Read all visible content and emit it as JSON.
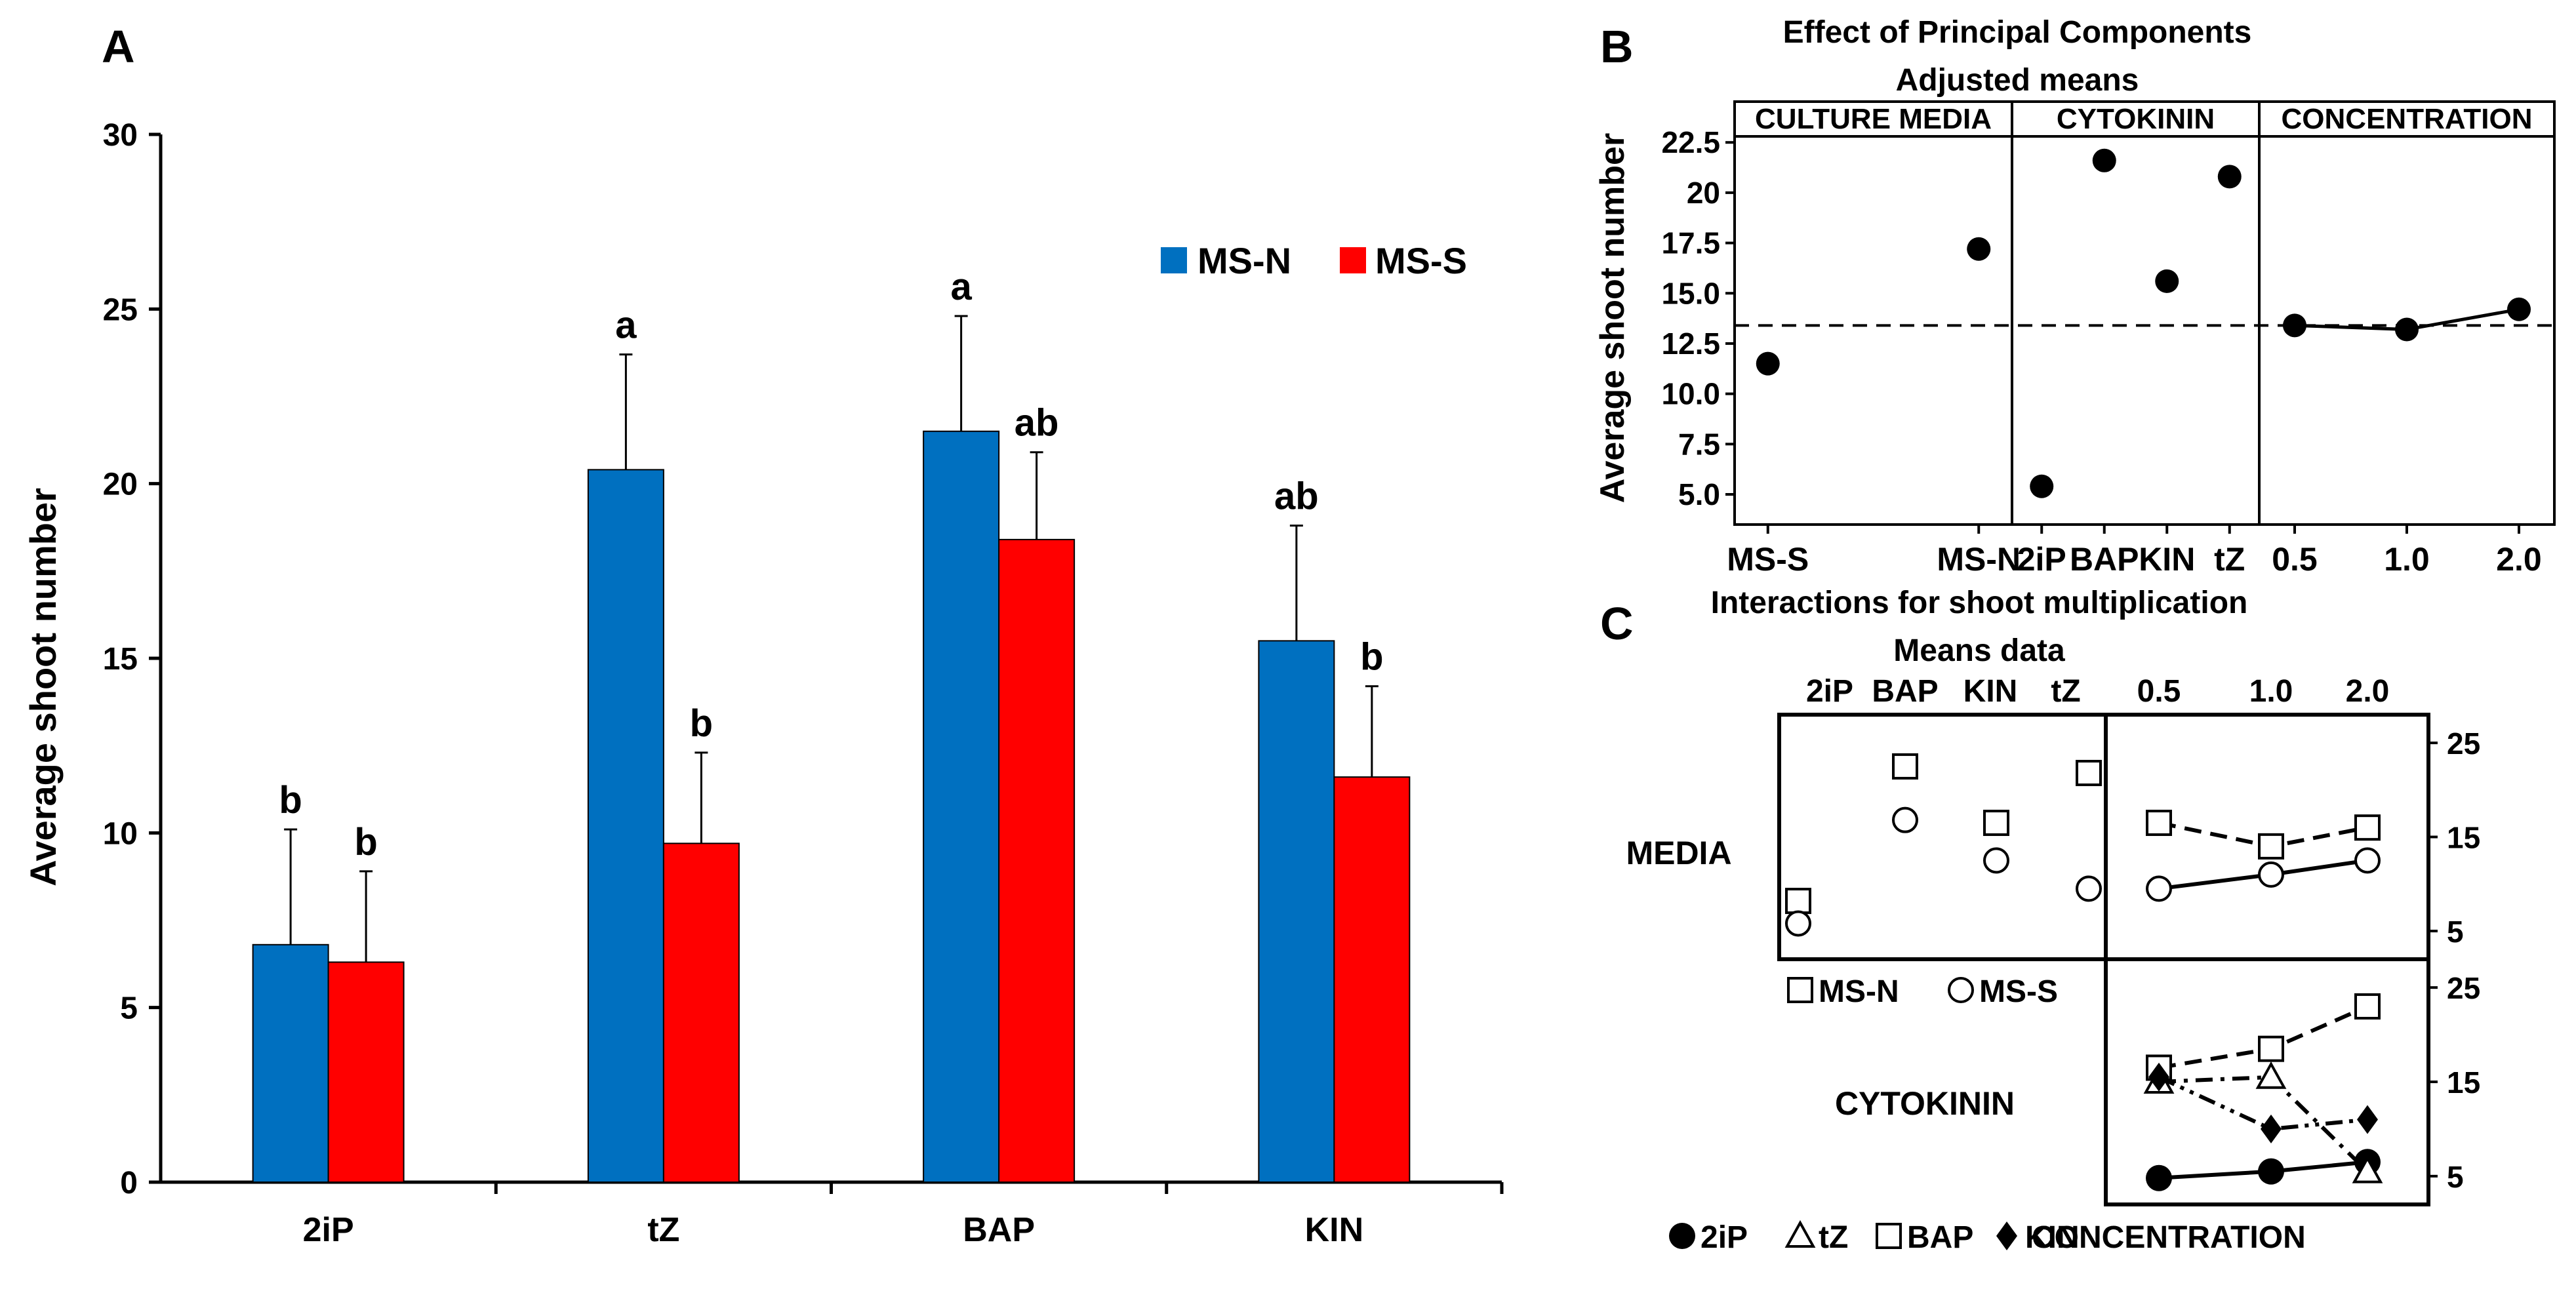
{
  "colors": {
    "ms_n": "#0070C0",
    "ms_s": "#FF0000",
    "ink": "#000000"
  },
  "panel_labels": {
    "a": "A",
    "b": "B",
    "c": "C"
  },
  "chart_data": [
    {
      "panel": "A",
      "type": "bar",
      "title": "",
      "xlabel": "",
      "ylabel": "Average shoot number",
      "ylim": [
        0,
        30
      ],
      "yticks": [
        "0",
        "5",
        "10",
        "15",
        "20",
        "25",
        "30"
      ],
      "categories": [
        "2iP",
        "tZ",
        "BAP",
        "KIN"
      ],
      "legend_position": "top-right",
      "series": [
        {
          "name": "MS-N",
          "color": "#0070C0",
          "values": [
            6.8,
            20.4,
            21.5,
            15.5
          ],
          "errors": [
            3.3,
            3.3,
            3.3,
            3.3
          ],
          "letters": [
            "b",
            "a",
            "a",
            "ab"
          ]
        },
        {
          "name": "MS-S",
          "color": "#FF0000",
          "values": [
            6.3,
            9.7,
            18.4,
            11.6
          ],
          "errors": [
            2.6,
            2.6,
            2.5,
            2.6
          ],
          "letters": [
            "b",
            "b",
            "ab",
            "b"
          ]
        }
      ]
    },
    {
      "panel": "B",
      "type": "scatter",
      "title": "Effect of Principal Components",
      "subtitle": "Adjusted means",
      "xlabel": "",
      "ylabel": "Average shoot number",
      "ylim": [
        3.5,
        22.8
      ],
      "yticks": [
        "5.0",
        "7.5",
        "10.0",
        "12.5",
        "15.0",
        "17.5",
        "20",
        "22.5"
      ],
      "reference_line": 13.4,
      "facets": [
        {
          "name": "CULTURE MEDIA",
          "categories": [
            "MS-S",
            "MS-N"
          ],
          "values": [
            11.5,
            17.2
          ],
          "connected": false
        },
        {
          "name": "CYTOKININ",
          "categories": [
            "2iP",
            "BAP",
            "KIN",
            "tZ"
          ],
          "values": [
            5.4,
            21.6,
            15.6,
            20.8
          ],
          "connected": false
        },
        {
          "name": "CONCENTRATION",
          "categories": [
            "0.5",
            "1.0",
            "2.0"
          ],
          "values": [
            13.4,
            13.2,
            14.2
          ],
          "connected": true
        }
      ]
    },
    {
      "panel": "C",
      "type": "line",
      "title": "Interactions for shoot  multiplication",
      "subtitle": "Means data",
      "cytokinin_labels": [
        "2iP",
        "BAP",
        "KIN",
        "tZ"
      ],
      "concentration_labels": [
        "0.5",
        "1.0",
        "2.0"
      ],
      "y_top": {
        "ticks": [
          "25",
          "15",
          "5"
        ],
        "ylim": [
          2,
          28
        ]
      },
      "y_bottom": {
        "ticks": [
          "25",
          "15",
          "5"
        ],
        "ylim": [
          2,
          28
        ]
      },
      "rows": [
        {
          "name": "MEDIA",
          "left_series": [
            {
              "name": "MS-N",
              "marker": "square",
              "values": [
                8.2,
                22.5,
                16.5,
                21.8
              ]
            },
            {
              "name": "MS-S",
              "marker": "circle",
              "values": [
                5.8,
                16.8,
                12.5,
                9.5
              ]
            }
          ],
          "right_series": [
            {
              "name": "MS-N",
              "marker": "square",
              "dash": "dashed",
              "values": [
                16.5,
                14.0,
                16.0
              ]
            },
            {
              "name": "MS-S",
              "marker": "circle",
              "dash": "solid",
              "values": [
                9.5,
                11.0,
                12.5
              ]
            }
          ],
          "legend": [
            "MS-N",
            "MS-S"
          ]
        },
        {
          "name": "CYTOKININ",
          "right_series": [
            {
              "name": "2iP",
              "marker": "circle-filled",
              "dash": "solid",
              "values": [
                4.8,
                5.5,
                6.5
              ]
            },
            {
              "name": "tZ",
              "marker": "triangle",
              "dash": "dashdot",
              "values": [
                15.0,
                15.5,
                5.5
              ]
            },
            {
              "name": "BAP",
              "marker": "square",
              "dash": "dashed",
              "values": [
                16.5,
                18.5,
                23.0
              ]
            },
            {
              "name": "KIN",
              "marker": "diamond-filled",
              "dash": "dashdotdot",
              "values": [
                15.5,
                10.0,
                11.0
              ]
            }
          ],
          "legend": [
            "2iP",
            "tZ",
            "BAP",
            "KIN"
          ],
          "legend_suffix": "CONCENTRATION"
        }
      ]
    }
  ]
}
